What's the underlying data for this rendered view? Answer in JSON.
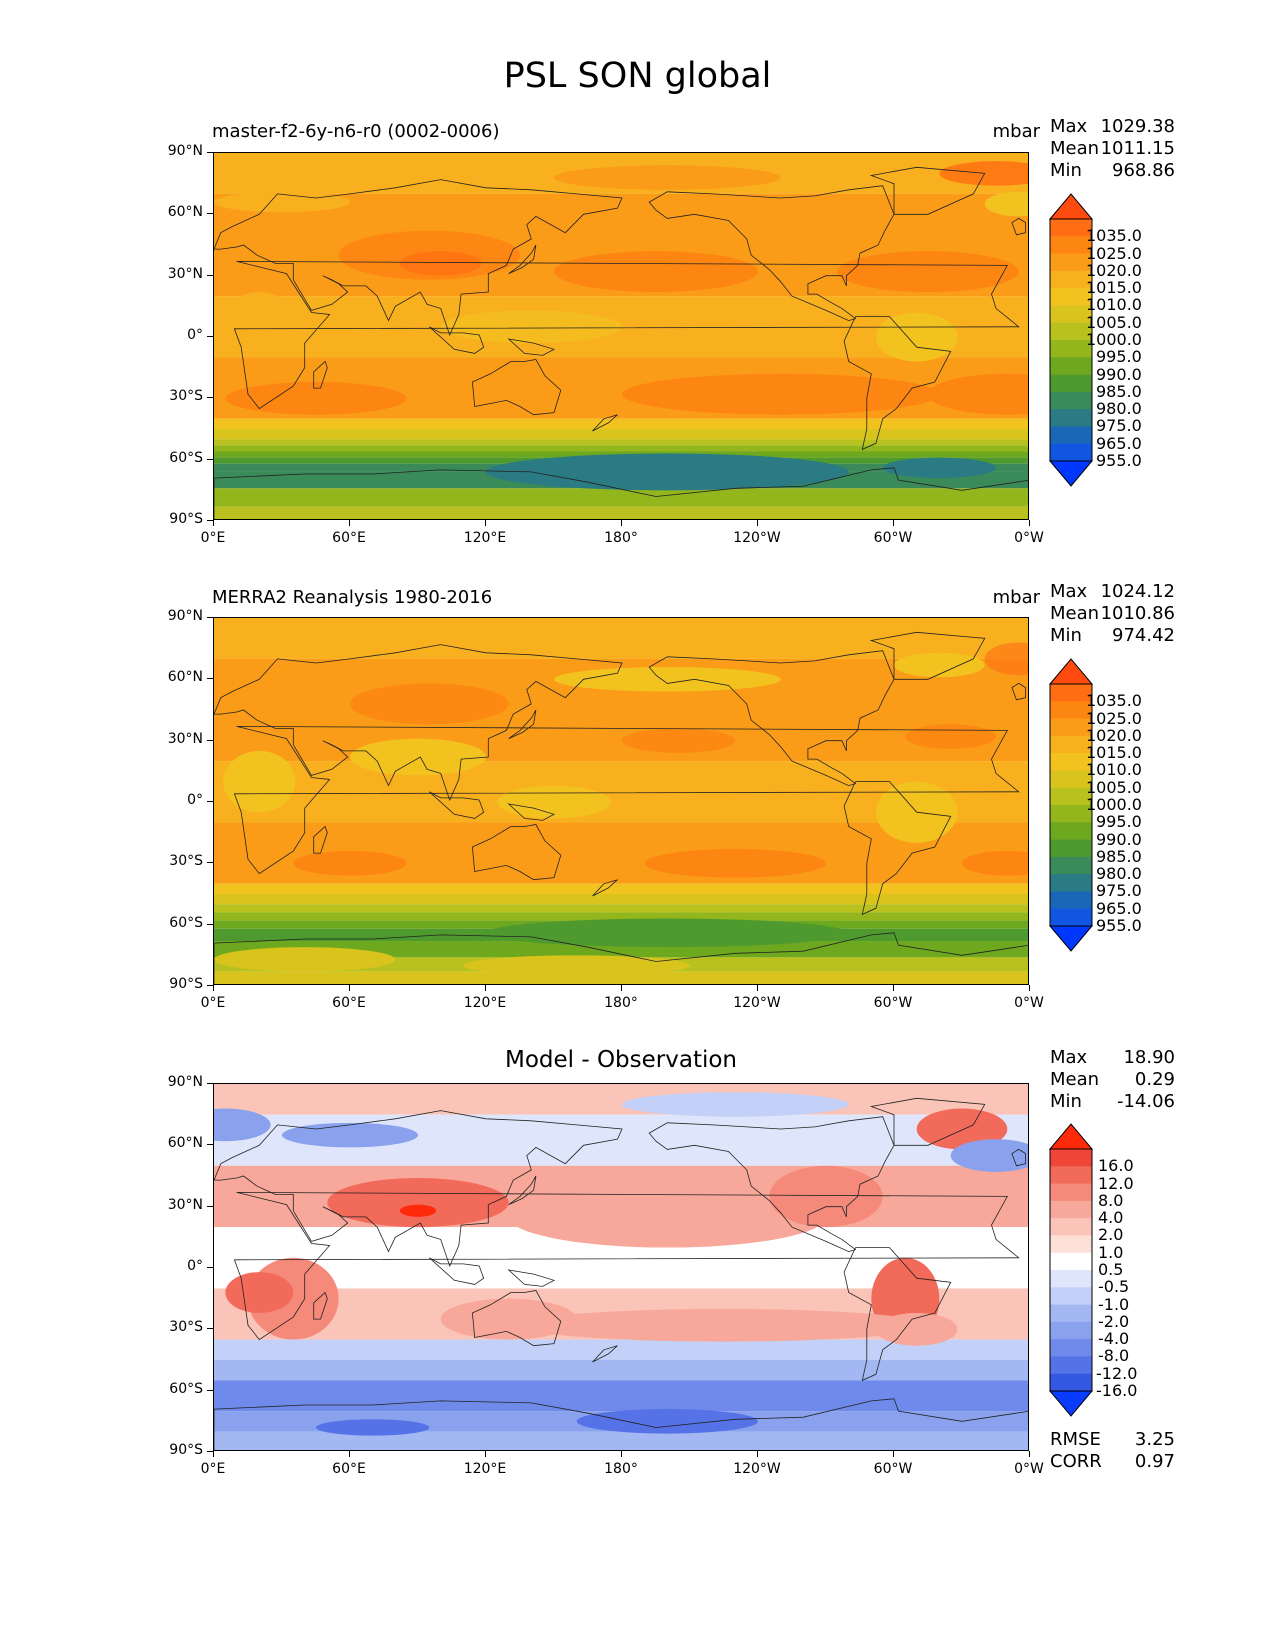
{
  "figure": {
    "title": "PSL SON global"
  },
  "panels": [
    {
      "title": "master-f2-6y-n6-r0 (0002-0006)",
      "units": "mbar",
      "stats": [
        {
          "label": "Max",
          "value": "1029.38"
        },
        {
          "label": "Mean",
          "value": "1011.15"
        },
        {
          "label": "Min",
          "value": "968.86"
        }
      ],
      "colorbar": {
        "labels": [
          "1035.0",
          "1025.0",
          "1020.0",
          "1015.0",
          "1010.0",
          "1005.0",
          "1000.0",
          "995.0",
          "990.0",
          "985.0",
          "980.0",
          "975.0",
          "965.0",
          "955.0"
        ],
        "colors": [
          "#ff4a10",
          "#ff6e12",
          "#fd8512",
          "#fb9c18",
          "#f9b01e",
          "#f2c21f",
          "#d9c41e",
          "#b8c11d",
          "#93b61c",
          "#6ea81f",
          "#4f9a2f",
          "#3a8a5a",
          "#2a7b84",
          "#1a67b8",
          "#1056e0",
          "#0037ff"
        ]
      },
      "rmse": null
    },
    {
      "title": "MERRA2 Reanalysis 1980-2016",
      "units": "mbar",
      "stats": [
        {
          "label": "Max",
          "value": "1024.12"
        },
        {
          "label": "Mean",
          "value": "1010.86"
        },
        {
          "label": "Min",
          "value": "974.42"
        }
      ],
      "colorbar": {
        "labels": [
          "1035.0",
          "1025.0",
          "1020.0",
          "1015.0",
          "1010.0",
          "1005.0",
          "1000.0",
          "995.0",
          "990.0",
          "985.0",
          "980.0",
          "975.0",
          "965.0",
          "955.0"
        ],
        "colors": [
          "#ff4a10",
          "#ff6e12",
          "#fd8512",
          "#fb9c18",
          "#f9b01e",
          "#f2c21f",
          "#d9c41e",
          "#b8c11d",
          "#93b61c",
          "#6ea81f",
          "#4f9a2f",
          "#3a8a5a",
          "#2a7b84",
          "#1a67b8",
          "#1056e0",
          "#0037ff"
        ]
      },
      "rmse": null
    },
    {
      "title": "Model - Observation",
      "units": "",
      "stats": [
        {
          "label": "Max",
          "value": "18.90"
        },
        {
          "label": "Mean",
          "value": "0.29"
        },
        {
          "label": "Min",
          "value": "-14.06"
        }
      ],
      "colorbar": {
        "labels": [
          "16.0",
          "12.0",
          "8.0",
          "4.0",
          "2.0",
          "1.0",
          "0.5",
          "-0.5",
          "-1.0",
          "-2.0",
          "-4.0",
          "-8.0",
          "-12.0",
          "-16.0"
        ],
        "colors": [
          "#ff2a0a",
          "#f0463a",
          "#f26a5a",
          "#f58a7a",
          "#f7a89a",
          "#fac4b8",
          "#fde0d8",
          "#ffffff",
          "#dfe6fb",
          "#c3d0f7",
          "#a3b7f2",
          "#8aa2ee",
          "#6f8aea",
          "#5572e6",
          "#3558e2",
          "#0a3cff"
        ]
      },
      "rmse": [
        {
          "label": "RMSE",
          "value": "3.25"
        },
        {
          "label": "CORR",
          "value": "0.97"
        }
      ]
    }
  ],
  "axes": {
    "yticks": [
      "90°N",
      "60°N",
      "30°N",
      "0°",
      "30°S",
      "60°S",
      "90°S"
    ],
    "xticks": [
      "0°E",
      "60°E",
      "120°E",
      "180°",
      "120°W",
      "60°W",
      "0°W"
    ]
  },
  "palette": {
    "psl_base": "#fb9c18",
    "psl_high": "#fd8512",
    "psl_low_band": [
      "#f2c21f",
      "#b8c11d",
      "#6ea81f",
      "#3a8a5a",
      "#2a7b84"
    ],
    "diff_pos": "#f58a7a",
    "diff_neg": "#6f8aea"
  }
}
